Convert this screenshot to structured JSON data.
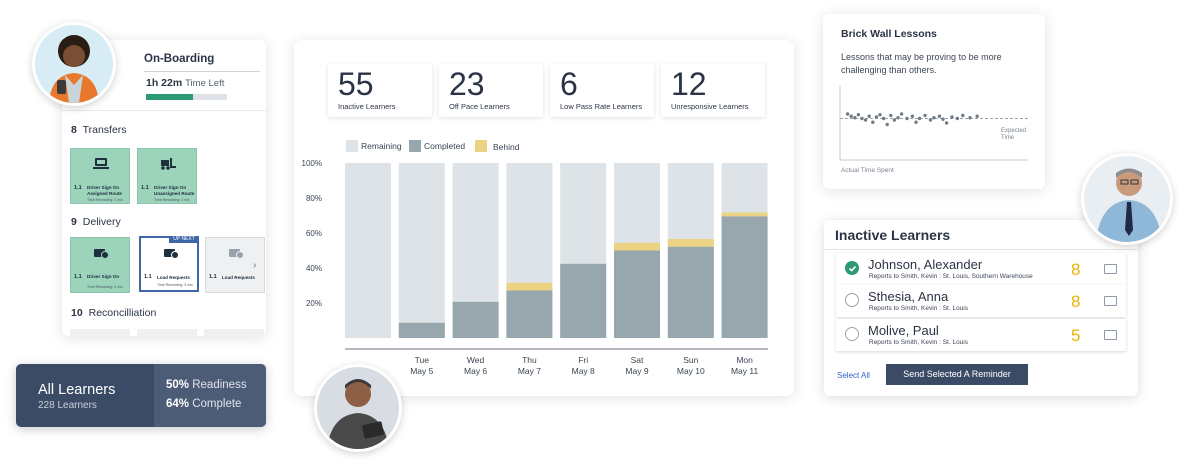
{
  "onboarding": {
    "title": "On-Boarding",
    "time_value": "1h 22m",
    "time_label": "Time Left",
    "progress_fraction": 0.58,
    "sections": [
      {
        "number": "8",
        "title": "Transfers",
        "tasks": [
          {
            "num": "1.1",
            "name": "Driver Sign On Assigned Route",
            "sub": "Time Remaining: 3 min",
            "icon": "laptop-icon",
            "state": "complete"
          },
          {
            "num": "1.1",
            "name": "Driver Sign On Unassigned Route",
            "sub": "Time Remaining: 3 min",
            "icon": "forklift-icon",
            "state": "complete"
          }
        ]
      },
      {
        "number": "9",
        "title": "Delivery",
        "tasks": [
          {
            "num": "1.1",
            "name": "Driver Sign On",
            "sub": "Time Remaining: 3 min",
            "icon": "truck-clock-icon",
            "state": "complete"
          },
          {
            "num": "1.1",
            "name": "Load Requests",
            "sub": "Time Remaining: 3 min",
            "icon": "truck-clock-icon",
            "state": "next",
            "badge": "UP NEXT"
          },
          {
            "num": "1.1",
            "name": "Load Requests",
            "sub": "",
            "icon": "truck-clock-icon",
            "state": "pending"
          }
        ]
      },
      {
        "number": "10",
        "title": "Reconcilliation",
        "tasks": []
      }
    ]
  },
  "all_learners": {
    "title": "All Learners",
    "count": "228 Learners",
    "readiness_value": "50%",
    "readiness_label": "Readiness",
    "complete_value": "64%",
    "complete_label": "Complete"
  },
  "kpis": [
    {
      "value": "55",
      "label": "Inactive Learners"
    },
    {
      "value": "23",
      "label": "Off Pace Learners"
    },
    {
      "value": "6",
      "label": "Low Pass Rate Learners"
    },
    {
      "value": "12",
      "label": "Unresponsive Learners"
    }
  ],
  "chart_data": {
    "type": "bar",
    "stacked": true,
    "legend": [
      "Remaining",
      "Completed",
      "Behind"
    ],
    "colors": {
      "Remaining": "#dde3e6",
      "Completed": "#97a7ad",
      "Behind": "#ecd384"
    },
    "categories": [
      {
        "day": "",
        "date": ""
      },
      {
        "day": "Tue",
        "date": "May 5"
      },
      {
        "day": "Wed",
        "date": "May 6"
      },
      {
        "day": "Thu",
        "date": "May 7"
      },
      {
        "day": "Fri",
        "date": "May 8"
      },
      {
        "day": "Sat",
        "date": "May 9"
      },
      {
        "day": "Sun",
        "date": "May 10"
      },
      {
        "day": "Mon",
        "date": "May 11"
      }
    ],
    "series": [
      {
        "name": "Completed",
        "values": [
          0,
          8,
          19,
          25,
          39,
          46,
          48,
          64
        ]
      },
      {
        "name": "Behind",
        "values": [
          0,
          0,
          0,
          4,
          0,
          4,
          4,
          2
        ]
      }
    ],
    "y_ticks": [
      "20%",
      "40%",
      "60%",
      "80%",
      "100%"
    ],
    "ylim": [
      0,
      92
    ]
  },
  "brick_wall": {
    "title": "Brick Wall Lessons",
    "description": "Lessons that may be proving to be more challenging than others.",
    "expected_label": "Expected Time",
    "xlabel": "Actual Time Spent",
    "points": [
      [
        0.02,
        0.44
      ],
      [
        0.04,
        0.47
      ],
      [
        0.06,
        0.49
      ],
      [
        0.08,
        0.45
      ],
      [
        0.1,
        0.5
      ],
      [
        0.12,
        0.52
      ],
      [
        0.14,
        0.47
      ],
      [
        0.16,
        0.55
      ],
      [
        0.18,
        0.48
      ],
      [
        0.2,
        0.45
      ],
      [
        0.22,
        0.5
      ],
      [
        0.24,
        0.58
      ],
      [
        0.26,
        0.46
      ],
      [
        0.28,
        0.52
      ],
      [
        0.3,
        0.49
      ],
      [
        0.32,
        0.44
      ],
      [
        0.35,
        0.5
      ],
      [
        0.38,
        0.47
      ],
      [
        0.4,
        0.55
      ],
      [
        0.42,
        0.5
      ],
      [
        0.45,
        0.46
      ],
      [
        0.48,
        0.52
      ],
      [
        0.5,
        0.49
      ],
      [
        0.53,
        0.47
      ],
      [
        0.55,
        0.51
      ],
      [
        0.57,
        0.56
      ],
      [
        0.6,
        0.48
      ],
      [
        0.63,
        0.5
      ],
      [
        0.66,
        0.46
      ],
      [
        0.7,
        0.49
      ],
      [
        0.74,
        0.47
      ]
    ]
  },
  "inactive": {
    "title": "Inactive Learners",
    "rows": [
      {
        "name": "Johnson, Alexander",
        "sub": "Reports to Smith, Kevin : St. Louis, Southern Warehouse",
        "count": "8",
        "selected": true
      },
      {
        "name": "Sthesia, Anna",
        "sub": "Reports to Smith, Kevin : St. Louis",
        "count": "8",
        "selected": false
      },
      {
        "name": "Molive, Paul",
        "sub": "Reports to Smith, Kevin : St. Louis",
        "count": "5",
        "selected": false
      }
    ],
    "select_all": "Select All",
    "reminder_button": "Send Selected A Reminder"
  }
}
